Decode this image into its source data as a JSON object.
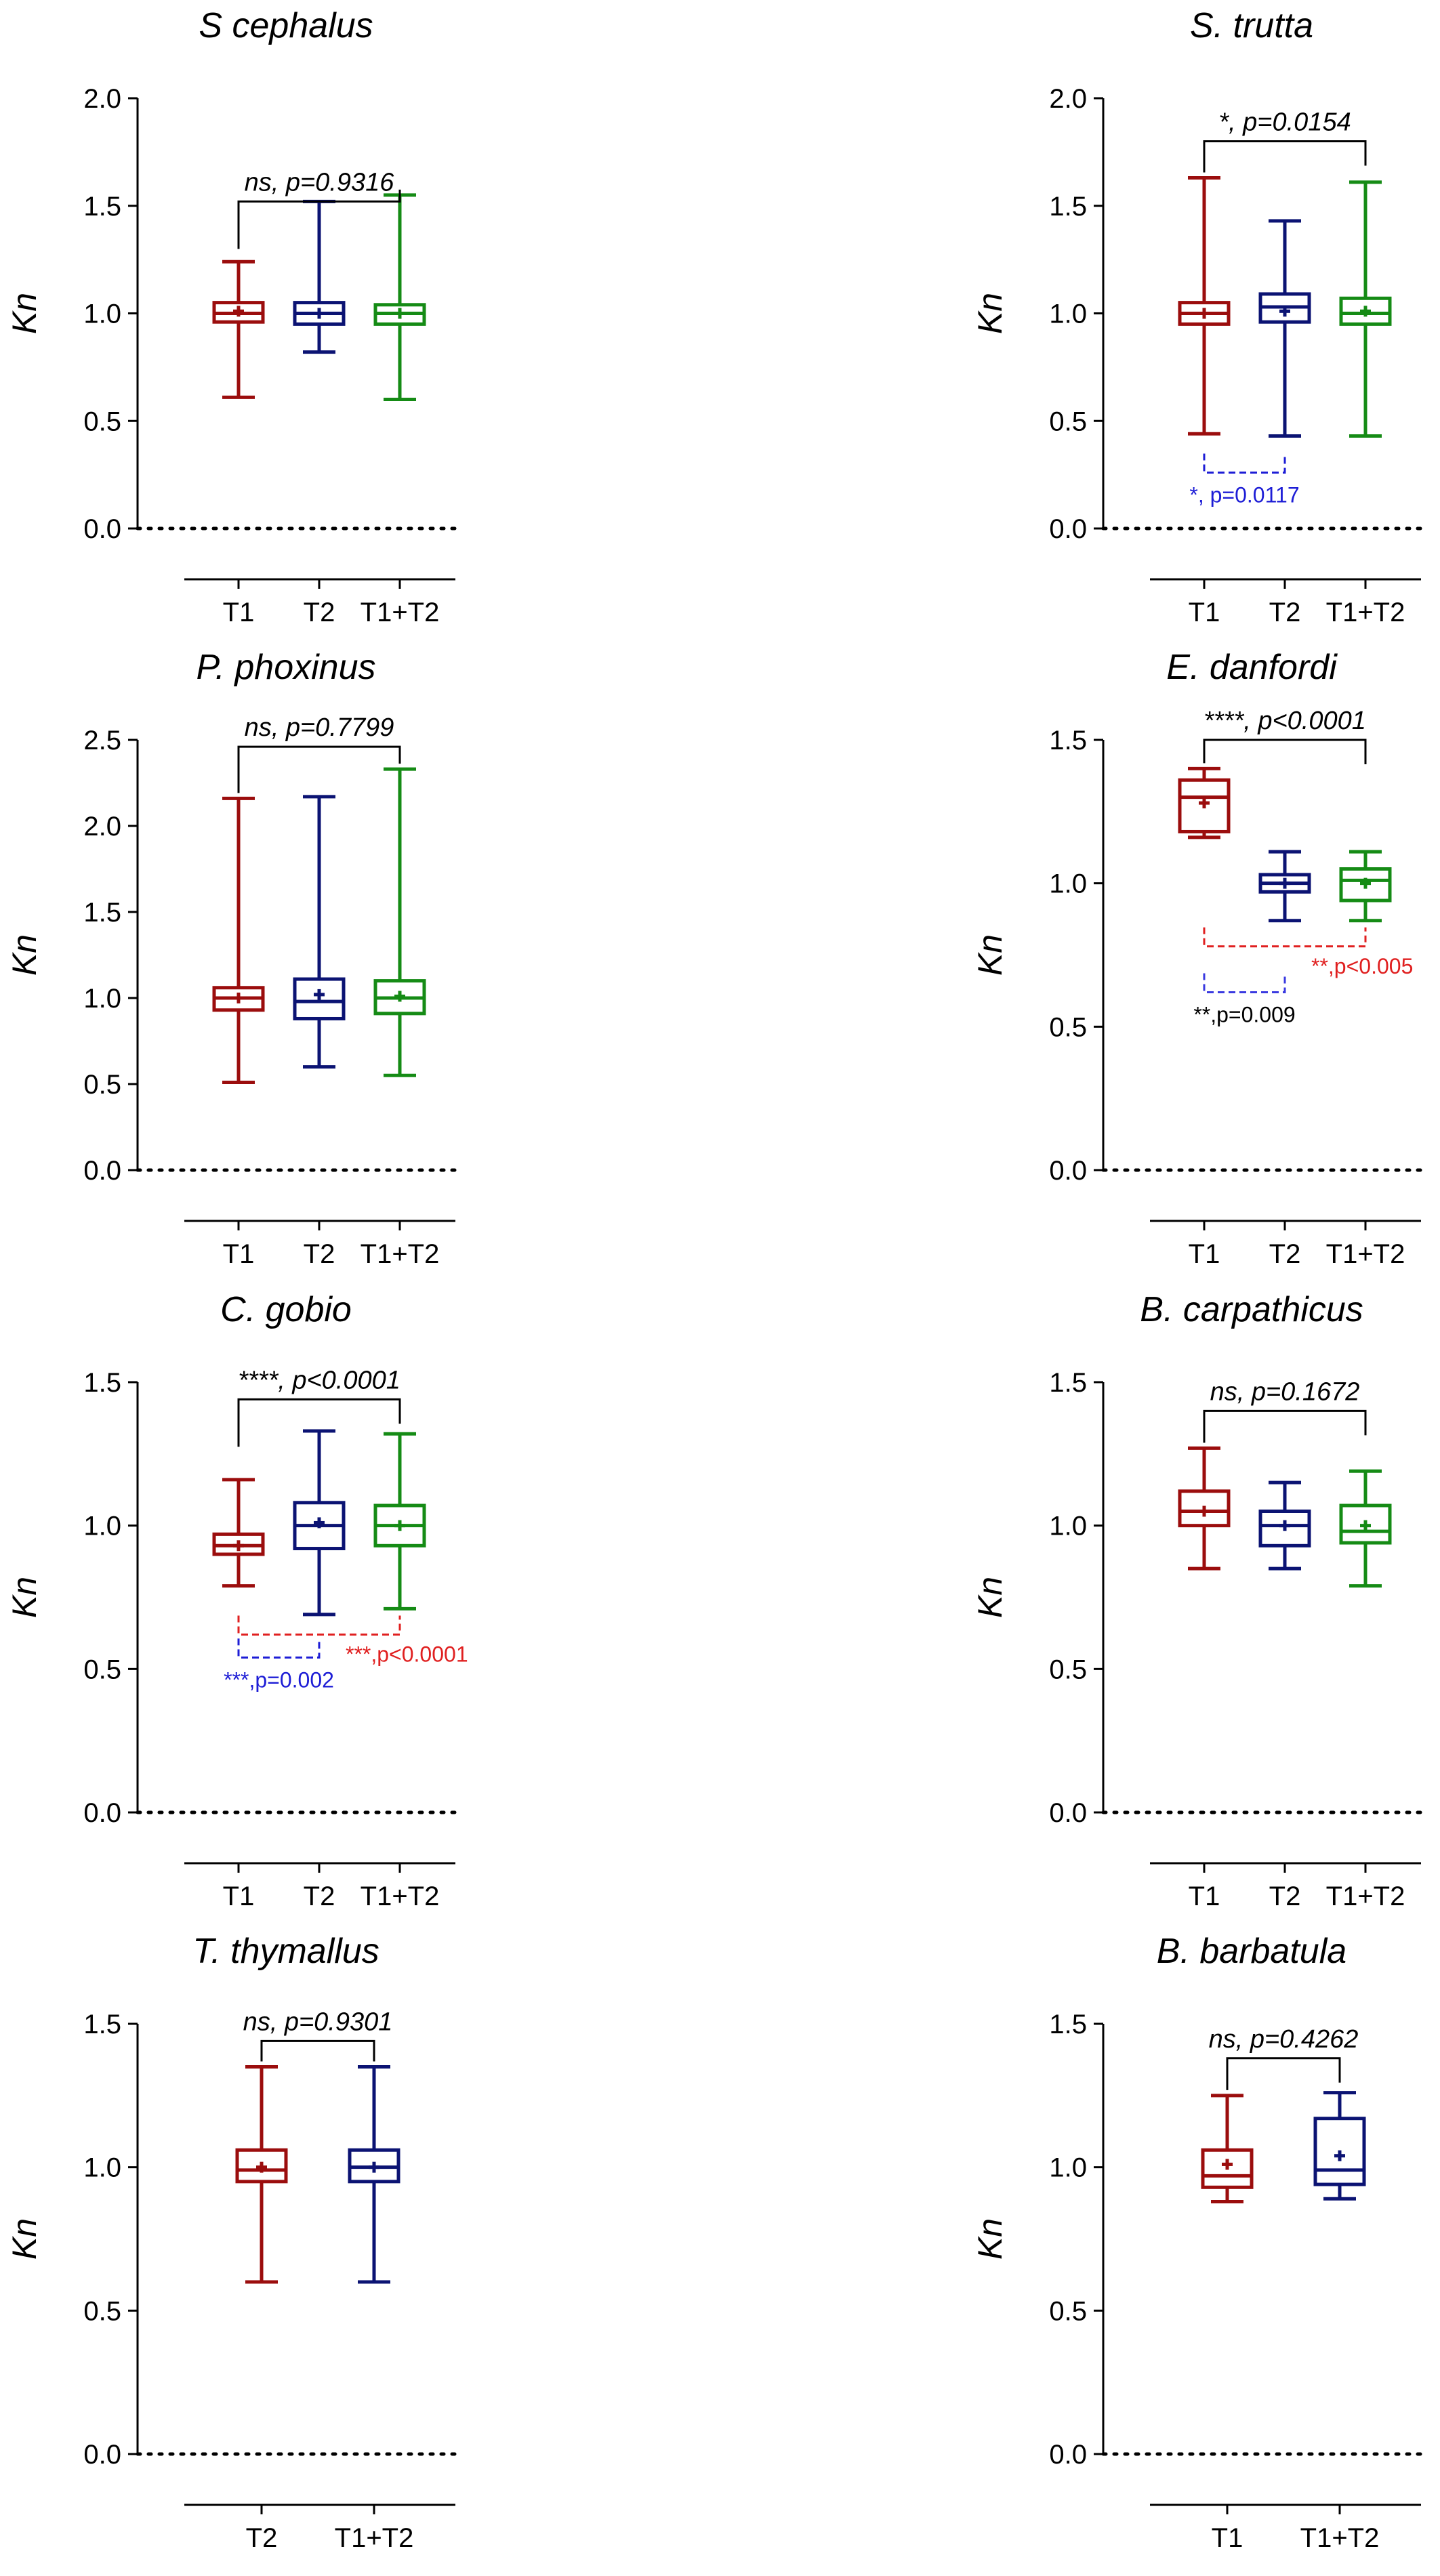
{
  "chart_data": [
    {
      "type": "box",
      "title": "S cephalus",
      "ylabel": "Kn",
      "yticks": [
        "0.0",
        "0.5",
        "1.0",
        "1.5",
        "2.0"
      ],
      "ylim": [
        0,
        2.0
      ],
      "categories": [
        "T1",
        "T2",
        "T1+T2"
      ],
      "series": [
        {
          "category": "T1",
          "color": "#9b0d0d",
          "whisker_low": 0.61,
          "q1": 0.96,
          "median": 1.0,
          "q3": 1.05,
          "whisker_high": 1.24,
          "mean": 1.01
        },
        {
          "category": "T2",
          "color": "#0b1373",
          "whisker_low": 0.82,
          "q1": 0.95,
          "median": 1.0,
          "q3": 1.05,
          "whisker_high": 1.52,
          "mean": 1.0
        },
        {
          "category": "T1+T2",
          "color": "#158b15",
          "whisker_low": 0.6,
          "q1": 0.95,
          "median": 1.0,
          "q3": 1.04,
          "whisker_high": 1.55,
          "mean": 1.0
        }
      ],
      "comparisons": [
        {
          "from": "T1",
          "to": "T1+T2",
          "label": "ns, p=0.9316",
          "y": 1.52,
          "style": "solid",
          "color": "#000000",
          "position": "top"
        }
      ]
    },
    {
      "type": "box",
      "title": "S. trutta",
      "ylabel": "Kn",
      "yticks": [
        "0.0",
        "0.5",
        "1.0",
        "1.5",
        "2.0"
      ],
      "ylim": [
        0,
        2.0
      ],
      "categories": [
        "T1",
        "T2",
        "T1+T2"
      ],
      "series": [
        {
          "category": "T1",
          "color": "#9b0d0d",
          "whisker_low": 0.44,
          "q1": 0.95,
          "median": 1.0,
          "q3": 1.05,
          "whisker_high": 1.63,
          "mean": 1.0
        },
        {
          "category": "T2",
          "color": "#0b1373",
          "whisker_low": 0.43,
          "q1": 0.96,
          "median": 1.03,
          "q3": 1.09,
          "whisker_high": 1.43,
          "mean": 1.01
        },
        {
          "category": "T1+T2",
          "color": "#158b15",
          "whisker_low": 0.43,
          "q1": 0.95,
          "median": 1.0,
          "q3": 1.07,
          "whisker_high": 1.61,
          "mean": 1.01
        }
      ],
      "comparisons": [
        {
          "from": "T1",
          "to": "T1+T2",
          "label": "*, p=0.0154",
          "y": 1.8,
          "style": "solid",
          "color": "#000000",
          "position": "top"
        },
        {
          "from": "T1",
          "to": "T2",
          "label": "*, p=0.0117",
          "y": 0.26,
          "style": "dashed",
          "color": "#1d1dd6",
          "position": "below"
        }
      ]
    },
    {
      "type": "box",
      "title": "P. phoxinus",
      "ylabel": "Kn",
      "yticks": [
        "0.0",
        "0.5",
        "1.0",
        "1.5",
        "2.0",
        "2.5"
      ],
      "ylim": [
        0,
        2.5
      ],
      "categories": [
        "T1",
        "T2",
        "T1+T2"
      ],
      "series": [
        {
          "category": "T1",
          "color": "#9b0d0d",
          "whisker_low": 0.51,
          "q1": 0.93,
          "median": 1.0,
          "q3": 1.06,
          "whisker_high": 2.16,
          "mean": 1.0
        },
        {
          "category": "T2",
          "color": "#0b1373",
          "whisker_low": 0.6,
          "q1": 0.88,
          "median": 0.98,
          "q3": 1.11,
          "whisker_high": 2.17,
          "mean": 1.02
        },
        {
          "category": "T1+T2",
          "color": "#158b15",
          "whisker_low": 0.55,
          "q1": 0.91,
          "median": 1.0,
          "q3": 1.1,
          "whisker_high": 2.33,
          "mean": 1.01
        }
      ],
      "comparisons": [
        {
          "from": "T1",
          "to": "T1+T2",
          "label": "ns, p=0.7799",
          "y": 2.46,
          "style": "solid",
          "color": "#000000",
          "position": "top"
        }
      ]
    },
    {
      "type": "box",
      "title": "E. danfordi",
      "ylabel": "Kn",
      "yticks": [
        "0.0",
        "0.5",
        "1.0",
        "1.5"
      ],
      "ylim": [
        0,
        1.5
      ],
      "categories": [
        "T1",
        "T2",
        "T1+T2"
      ],
      "series": [
        {
          "category": "T1",
          "color": "#9b0d0d",
          "whisker_low": 1.16,
          "q1": 1.18,
          "median": 1.3,
          "q3": 1.36,
          "whisker_high": 1.4,
          "mean": 1.28
        },
        {
          "category": "T2",
          "color": "#0b1373",
          "whisker_low": 0.87,
          "q1": 0.97,
          "median": 1.0,
          "q3": 1.03,
          "whisker_high": 1.11,
          "mean": 1.0
        },
        {
          "category": "T1+T2",
          "color": "#158b15",
          "whisker_low": 0.87,
          "q1": 0.94,
          "median": 1.01,
          "q3": 1.05,
          "whisker_high": 1.11,
          "mean": 1.0
        }
      ],
      "comparisons": [
        {
          "from": "T1",
          "to": "T1+T2",
          "label": "****, p<0.0001",
          "y": 1.5,
          "style": "solid",
          "color": "#000000",
          "position": "top"
        },
        {
          "from": "T1",
          "to": "T1+T2",
          "label": "**,p<0.005",
          "y": 0.78,
          "style": "dashed",
          "color": "#e02020",
          "position": "right"
        },
        {
          "from": "T1",
          "to": "T2",
          "label": "**,p=0.009",
          "y": 0.62,
          "style": "dashed",
          "color": "#3a3ae0",
          "position": "below"
        }
      ]
    },
    {
      "type": "box",
      "title": "C. gobio",
      "ylabel": "Kn",
      "yticks": [
        "0.0",
        "0.5",
        "1.0",
        "1.5"
      ],
      "ylim": [
        0,
        1.5
      ],
      "categories": [
        "T1",
        "T2",
        "T1+T2"
      ],
      "series": [
        {
          "category": "T1",
          "color": "#9b0d0d",
          "whisker_low": 0.79,
          "q1": 0.9,
          "median": 0.93,
          "q3": 0.97,
          "whisker_high": 1.16,
          "mean": 0.93
        },
        {
          "category": "T2",
          "color": "#0b1373",
          "whisker_low": 0.69,
          "q1": 0.92,
          "median": 1.0,
          "q3": 1.08,
          "whisker_high": 1.33,
          "mean": 1.01
        },
        {
          "category": "T1+T2",
          "color": "#158b15",
          "whisker_low": 0.71,
          "q1": 0.93,
          "median": 1.0,
          "q3": 1.07,
          "whisker_high": 1.32,
          "mean": 1.0
        }
      ],
      "comparisons": [
        {
          "from": "T1",
          "to": "T1+T2",
          "label": "****, p<0.0001",
          "y": 1.44,
          "style": "solid",
          "color": "#000000",
          "position": "top"
        },
        {
          "from": "T1",
          "to": "T1+T2",
          "label": "***,p<0.0001",
          "y": 0.62,
          "style": "dashed",
          "color": "#e02020",
          "position": "right"
        },
        {
          "from": "T1",
          "to": "T2",
          "label": "***,p=0.002",
          "y": 0.54,
          "style": "dashed",
          "color": "#1d1dd6",
          "position": "below"
        }
      ]
    },
    {
      "type": "box",
      "title": "B. carpathicus",
      "ylabel": "Kn",
      "yticks": [
        "0.0",
        "0.5",
        "1.0",
        "1.5"
      ],
      "ylim": [
        0,
        1.5
      ],
      "categories": [
        "T1",
        "T2",
        "T1+T2"
      ],
      "series": [
        {
          "category": "T1",
          "color": "#9b0d0d",
          "whisker_low": 0.85,
          "q1": 1.0,
          "median": 1.05,
          "q3": 1.12,
          "whisker_high": 1.27,
          "mean": 1.05
        },
        {
          "category": "T2",
          "color": "#0b1373",
          "whisker_low": 0.85,
          "q1": 0.93,
          "median": 1.0,
          "q3": 1.05,
          "whisker_high": 1.15,
          "mean": 1.0
        },
        {
          "category": "T1+T2",
          "color": "#158b15",
          "whisker_low": 0.79,
          "q1": 0.94,
          "median": 0.98,
          "q3": 1.07,
          "whisker_high": 1.19,
          "mean": 1.0
        }
      ],
      "comparisons": [
        {
          "from": "T1",
          "to": "T1+T2",
          "label": "ns, p=0.1672",
          "y": 1.4,
          "style": "solid",
          "color": "#000000",
          "position": "top"
        }
      ]
    },
    {
      "type": "box",
      "title": "T. thymallus",
      "ylabel": "Kn",
      "yticks": [
        "0.0",
        "0.5",
        "1.0",
        "1.5"
      ],
      "ylim": [
        0,
        1.5
      ],
      "categories": [
        "T2",
        "T1+T2"
      ],
      "series": [
        {
          "category": "T2",
          "color": "#9b0d0d",
          "whisker_low": 0.6,
          "q1": 0.95,
          "median": 0.99,
          "q3": 1.06,
          "whisker_high": 1.35,
          "mean": 1.0
        },
        {
          "category": "T1+T2",
          "color": "#0b1373",
          "whisker_low": 0.6,
          "q1": 0.95,
          "median": 1.0,
          "q3": 1.06,
          "whisker_high": 1.35,
          "mean": 1.0
        }
      ],
      "comparisons": [
        {
          "from": "T2",
          "to": "T1+T2",
          "label": "ns, p=0.9301",
          "y": 1.44,
          "style": "solid",
          "color": "#000000",
          "position": "top"
        }
      ]
    },
    {
      "type": "box",
      "title": "B. barbatula",
      "ylabel": "Kn",
      "yticks": [
        "0.0",
        "0.5",
        "1.0",
        "1.5"
      ],
      "ylim": [
        0,
        1.5
      ],
      "categories": [
        "T1",
        "T1+T2"
      ],
      "series": [
        {
          "category": "T1",
          "color": "#9b0d0d",
          "whisker_low": 0.88,
          "q1": 0.93,
          "median": 0.97,
          "q3": 1.06,
          "whisker_high": 1.25,
          "mean": 1.01
        },
        {
          "category": "T1+T2",
          "color": "#0b1373",
          "whisker_low": 0.89,
          "q1": 0.94,
          "median": 0.99,
          "q3": 1.17,
          "whisker_high": 1.26,
          "mean": 1.04
        }
      ],
      "comparisons": [
        {
          "from": "T1",
          "to": "T1+T2",
          "label": "ns, p=0.4262",
          "y": 1.38,
          "style": "solid",
          "color": "#000000",
          "position": "top"
        }
      ]
    }
  ]
}
